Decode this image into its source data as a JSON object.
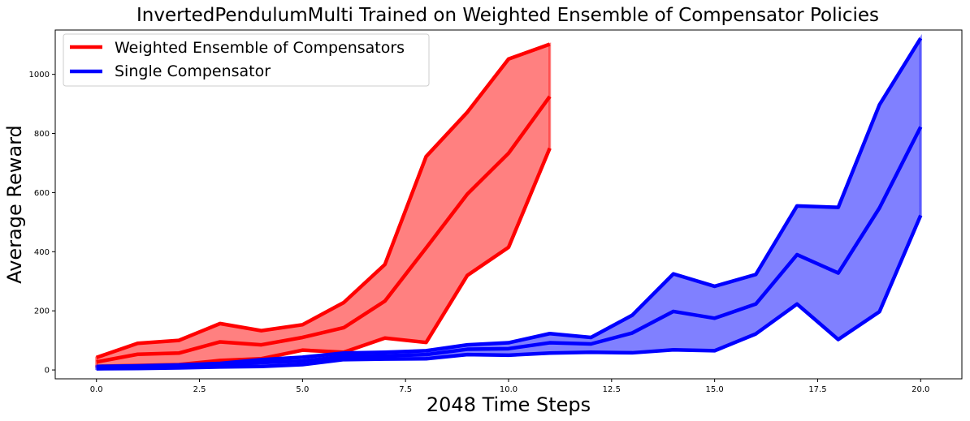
{
  "chart_data": {
    "type": "line",
    "title": "InvertedPendulumMulti Trained on Weighted Ensemble of Compensator Policies",
    "xlabel": "2048 Time Steps",
    "ylabel": "Average Reward",
    "xlim": [
      -1,
      21
    ],
    "ylim": [
      -30,
      1150
    ],
    "xticks": [
      0,
      2.5,
      5,
      7.5,
      10,
      12.5,
      15,
      17.5,
      20
    ],
    "xtick_labels": [
      "0.0",
      "2.5",
      "5.0",
      "7.5",
      "10.0",
      "12.5",
      "15.0",
      "17.5",
      "20.0"
    ],
    "yticks": [
      0,
      200,
      400,
      600,
      800,
      1000
    ],
    "ytick_labels": [
      "0",
      "200",
      "400",
      "600",
      "800",
      "1000"
    ],
    "grid": false,
    "legend_position": "top-left",
    "series": [
      {
        "name": "Weighted Ensemble of Compensators",
        "color": "#ff0000",
        "fill_color": "#ff8080",
        "x": [
          0,
          1,
          2,
          3,
          4,
          5,
          6,
          7,
          8,
          9,
          10,
          11
        ],
        "upper": [
          42,
          90,
          100,
          157,
          133,
          153,
          228,
          357,
          722,
          872,
          1052,
          1102
        ],
        "mean": [
          27,
          53,
          57,
          95,
          85,
          110,
          143,
          233,
          413,
          595,
          733,
          925
        ],
        "lower": [
          12,
          15,
          18,
          32,
          38,
          67,
          60,
          108,
          93,
          320,
          415,
          750
        ]
      },
      {
        "name": "Single Compensator",
        "color": "#0000ff",
        "fill_color": "#8080ff",
        "x": [
          0,
          1,
          2,
          3,
          4,
          5,
          6,
          7,
          8,
          9,
          10,
          11,
          12,
          13,
          14,
          15,
          16,
          17,
          18,
          19,
          20
        ],
        "upper": [
          12,
          14,
          17,
          22,
          35,
          43,
          57,
          60,
          65,
          85,
          92,
          123,
          110,
          185,
          325,
          283,
          323,
          555,
          550,
          897,
          1122
        ],
        "mean": [
          8,
          10,
          12,
          17,
          25,
          30,
          46,
          48,
          52,
          70,
          72,
          92,
          88,
          125,
          198,
          175,
          223,
          390,
          328,
          548,
          822
        ],
        "lower": [
          4,
          5,
          7,
          10,
          12,
          18,
          35,
          37,
          38,
          52,
          50,
          57,
          60,
          58,
          68,
          65,
          122,
          223,
          103,
          197,
          523
        ]
      }
    ]
  }
}
